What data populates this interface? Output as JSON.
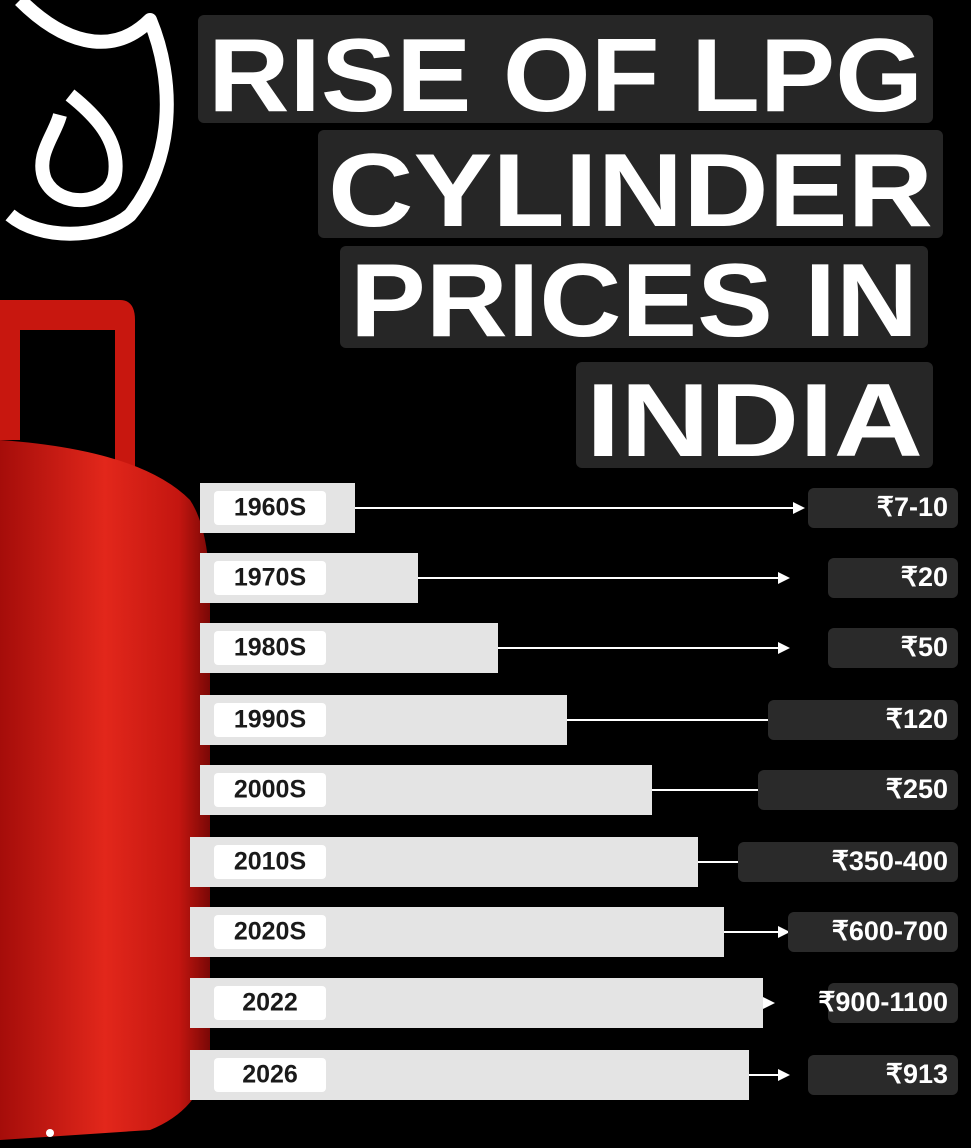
{
  "header": {
    "title_lines": [
      "RISE OF LPG",
      "CYLINDER",
      "PRICES IN",
      "INDIA"
    ]
  },
  "rows": [
    {
      "period": "1960S",
      "price": "₹7-10"
    },
    {
      "period": "1970S",
      "price": "₹20"
    },
    {
      "period": "1980S",
      "price": "₹50"
    },
    {
      "period": "1990S",
      "price": "₹120"
    },
    {
      "period": "2000S",
      "price": "₹250"
    },
    {
      "period": "2010S",
      "price": "₹350-400"
    },
    {
      "period": "2020S",
      "price": "₹600-700"
    },
    {
      "period": "2022",
      "price": "₹900-1100"
    },
    {
      "period": "2026",
      "price": "₹913"
    }
  ]
}
